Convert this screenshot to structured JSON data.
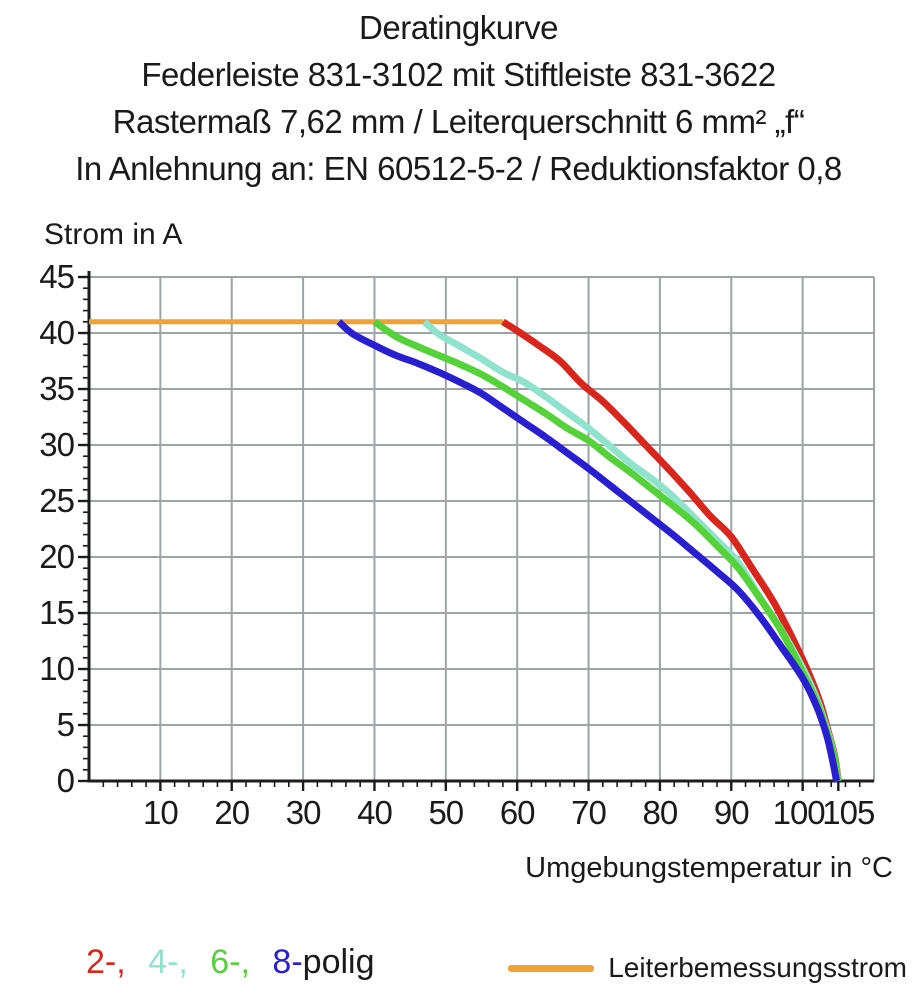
{
  "header": {
    "title": "Deratingkurve",
    "subtitle_product": "Federleiste 831-3102 mit Stiftleiste 831-3622",
    "subtitle_spec": "Rastermaß 7,62 mm / Leiterquerschnitt 6 mm² „f“",
    "subtitle_standard": "In Anlehnung an: EN 60512-5-2 / Reduktionsfaktor 0,8"
  },
  "chart_data": {
    "type": "line",
    "title": "Deratingkurve",
    "xlabel": "Umgebungstemperatur in °C",
    "ylabel": "Strom in A",
    "xlim": [
      0,
      110
    ],
    "ylim": [
      0,
      45
    ],
    "x_ticks": [
      10,
      20,
      30,
      40,
      50,
      60,
      70,
      80,
      90,
      100,
      105
    ],
    "y_ticks": [
      0,
      5,
      10,
      15,
      20,
      25,
      30,
      35,
      40,
      45
    ],
    "x_minor_step": 2,
    "y_minor_step": 1,
    "grid_x_step": 10,
    "grid_y_step": 5,
    "grid_on": true,
    "legend_position": "bottom",
    "colors": {
      "grid": "#9da3a6",
      "axis": "#1c1c1c",
      "text": "#1a1a1a"
    },
    "rated_line": {
      "label": "Leiterbemessungsstrom",
      "color": "#f2a134",
      "current": 41,
      "t_start": 0,
      "t_end": 58
    },
    "series": [
      {
        "name": "2-polig",
        "color": "#d9261c",
        "points": [
          [
            58,
            41
          ],
          [
            60,
            40.2
          ],
          [
            63,
            38.9
          ],
          [
            66,
            37.5
          ],
          [
            69,
            35.5
          ],
          [
            72,
            33.9
          ],
          [
            75,
            32
          ],
          [
            78,
            30
          ],
          [
            81,
            28
          ],
          [
            84,
            25.9
          ],
          [
            87,
            23.7
          ],
          [
            90,
            21.8
          ],
          [
            93,
            18.9
          ],
          [
            96,
            15.9
          ],
          [
            99,
            12.2
          ],
          [
            101,
            9.4
          ],
          [
            102.5,
            6.9
          ],
          [
            103.6,
            4.4
          ],
          [
            104.5,
            2.2
          ],
          [
            105,
            0
          ]
        ]
      },
      {
        "name": "4-polig",
        "color": "#8fe3cd",
        "points": [
          [
            47,
            41
          ],
          [
            49,
            39.9
          ],
          [
            52,
            38.8
          ],
          [
            55,
            37.7
          ],
          [
            58,
            36.5
          ],
          [
            61,
            35.6
          ],
          [
            64,
            34.3
          ],
          [
            67,
            32.9
          ],
          [
            70,
            31.5
          ],
          [
            73,
            29.9
          ],
          [
            76,
            28.3
          ],
          [
            79,
            26.9
          ],
          [
            82,
            25.3
          ],
          [
            85,
            23.4
          ],
          [
            88,
            21.5
          ],
          [
            91,
            19.5
          ],
          [
            94,
            16.4
          ],
          [
            97,
            13.5
          ],
          [
            100,
            10.1
          ],
          [
            102,
            7.3
          ],
          [
            103.5,
            4.4
          ],
          [
            104.5,
            2
          ],
          [
            104.95,
            0
          ]
        ]
      },
      {
        "name": "6-polig",
        "color": "#55d23a",
        "points": [
          [
            40,
            41
          ],
          [
            43,
            39.7
          ],
          [
            46,
            38.8
          ],
          [
            49,
            38
          ],
          [
            52,
            37.2
          ],
          [
            55,
            36.3
          ],
          [
            58,
            35.2
          ],
          [
            61,
            34
          ],
          [
            64,
            32.8
          ],
          [
            67,
            31.5
          ],
          [
            70,
            30.4
          ],
          [
            73,
            28.9
          ],
          [
            76,
            27.5
          ],
          [
            79,
            26
          ],
          [
            82,
            24.5
          ],
          [
            85,
            22.9
          ],
          [
            88,
            21
          ],
          [
            91,
            19
          ],
          [
            94,
            16.3
          ],
          [
            97,
            13.4
          ],
          [
            100,
            9.7
          ],
          [
            102,
            7
          ],
          [
            103.5,
            4.2
          ],
          [
            104.5,
            1.9
          ],
          [
            104.9,
            0
          ]
        ]
      },
      {
        "name": "8-polig",
        "color": "#2a1fd0",
        "points": [
          [
            35,
            41
          ],
          [
            37,
            39.9
          ],
          [
            40,
            38.9
          ],
          [
            43,
            38
          ],
          [
            46,
            37.3
          ],
          [
            49,
            36.5
          ],
          [
            52,
            35.6
          ],
          [
            55,
            34.6
          ],
          [
            58,
            33.3
          ],
          [
            61,
            32
          ],
          [
            64,
            30.7
          ],
          [
            67,
            29.3
          ],
          [
            70,
            27.9
          ],
          [
            73,
            26.4
          ],
          [
            76,
            24.9
          ],
          [
            79,
            23.4
          ],
          [
            82,
            21.9
          ],
          [
            85,
            20.3
          ],
          [
            88,
            18.7
          ],
          [
            91,
            17
          ],
          [
            94,
            14.7
          ],
          [
            97,
            12
          ],
          [
            100,
            9.2
          ],
          [
            102,
            6.6
          ],
          [
            103.4,
            4
          ],
          [
            104.2,
            1.8
          ],
          [
            104.75,
            0
          ]
        ]
      }
    ]
  },
  "legend": {
    "poles": [
      {
        "label": "2-,",
        "color": "#d9261c"
      },
      {
        "label": "4-,",
        "color": "#8fe3cd"
      },
      {
        "label": "6-,",
        "color": "#55d23a"
      },
      {
        "label": "8-",
        "color": "#2a1fd0"
      }
    ],
    "poles_suffix": "polig",
    "rated_current_label": "Leiterbemessungsstrom",
    "rated_current_color": "#f2a134"
  }
}
